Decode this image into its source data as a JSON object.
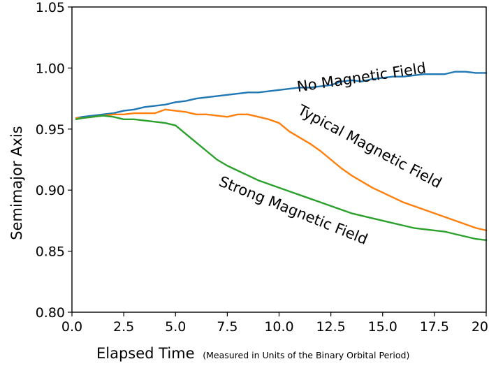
{
  "chart_data": {
    "type": "line",
    "title": "",
    "xlabel": "Elapsed Time",
    "xlabel_note": "(Measured in Units of the Binary Orbital Period)",
    "ylabel": "Semimajor Axis",
    "xlim": [
      0,
      20
    ],
    "ylim": [
      0.8,
      1.05
    ],
    "xticks": [
      0.0,
      2.5,
      5.0,
      7.5,
      10.0,
      12.5,
      15.0,
      17.5,
      20.0
    ],
    "xtick_labels": [
      "0.0",
      "2.5",
      "5.0",
      "7.5",
      "10.0",
      "12.5",
      "15.0",
      "17.5",
      "20"
    ],
    "yticks": [
      0.8,
      0.85,
      0.9,
      0.95,
      1.0,
      1.05
    ],
    "ytick_labels": [
      "0.80",
      "0.85",
      "0.90",
      "0.95",
      "1.00",
      "1.05"
    ],
    "grid": false,
    "series": [
      {
        "name": "No Magnetic Field",
        "color": "#1f77b4",
        "x": [
          0.2,
          0.5,
          1.0,
          1.5,
          2.0,
          2.5,
          3.0,
          3.5,
          4.0,
          4.5,
          5.0,
          5.5,
          6.0,
          6.5,
          7.0,
          7.5,
          8.0,
          8.5,
          9.0,
          9.5,
          10.0,
          10.5,
          11.0,
          11.5,
          12.0,
          12.5,
          13.0,
          13.5,
          14.0,
          14.5,
          15.0,
          15.5,
          16.0,
          16.5,
          17.0,
          17.5,
          18.0,
          18.5,
          19.0,
          19.5,
          20.0
        ],
        "y": [
          0.959,
          0.96,
          0.961,
          0.962,
          0.963,
          0.965,
          0.966,
          0.968,
          0.969,
          0.97,
          0.972,
          0.973,
          0.975,
          0.976,
          0.977,
          0.978,
          0.979,
          0.98,
          0.98,
          0.981,
          0.982,
          0.983,
          0.984,
          0.984,
          0.985,
          0.986,
          0.989,
          0.99,
          0.989,
          0.991,
          0.992,
          0.993,
          0.993,
          0.994,
          0.995,
          0.995,
          0.995,
          0.997,
          0.997,
          0.996,
          0.996
        ]
      },
      {
        "name": "Typical Magnetic Field",
        "color": "#ff7f0e",
        "x": [
          0.2,
          0.5,
          1.0,
          1.5,
          2.0,
          2.5,
          3.0,
          3.5,
          4.0,
          4.5,
          5.0,
          5.5,
          6.0,
          6.5,
          7.0,
          7.5,
          8.0,
          8.5,
          9.0,
          9.5,
          10.0,
          10.5,
          11.0,
          11.5,
          12.0,
          12.5,
          13.0,
          13.5,
          14.0,
          14.5,
          15.0,
          15.5,
          16.0,
          16.5,
          17.0,
          17.5,
          18.0,
          18.5,
          19.0,
          19.5,
          20.0
        ],
        "y": [
          0.959,
          0.959,
          0.96,
          0.961,
          0.962,
          0.962,
          0.963,
          0.963,
          0.963,
          0.966,
          0.965,
          0.964,
          0.962,
          0.962,
          0.961,
          0.96,
          0.962,
          0.962,
          0.96,
          0.958,
          0.955,
          0.948,
          0.943,
          0.938,
          0.932,
          0.925,
          0.918,
          0.912,
          0.907,
          0.902,
          0.898,
          0.894,
          0.89,
          0.887,
          0.884,
          0.881,
          0.878,
          0.875,
          0.872,
          0.869,
          0.867
        ]
      },
      {
        "name": "Strong Magnetic Field",
        "color": "#2ca02c",
        "x": [
          0.2,
          0.5,
          1.0,
          1.5,
          2.0,
          2.5,
          3.0,
          3.5,
          4.0,
          4.5,
          5.0,
          5.5,
          6.0,
          6.5,
          7.0,
          7.5,
          8.0,
          8.5,
          9.0,
          9.5,
          10.0,
          10.5,
          11.0,
          11.5,
          12.0,
          12.5,
          13.0,
          13.5,
          14.0,
          14.5,
          15.0,
          15.5,
          16.0,
          16.5,
          17.0,
          17.5,
          18.0,
          18.5,
          19.0,
          19.5,
          20.0
        ],
        "y": [
          0.958,
          0.959,
          0.96,
          0.961,
          0.96,
          0.958,
          0.958,
          0.957,
          0.956,
          0.955,
          0.953,
          0.946,
          0.939,
          0.932,
          0.925,
          0.92,
          0.916,
          0.912,
          0.908,
          0.905,
          0.902,
          0.899,
          0.896,
          0.893,
          0.89,
          0.887,
          0.884,
          0.881,
          0.879,
          0.877,
          0.875,
          0.873,
          0.871,
          0.869,
          0.868,
          0.867,
          0.866,
          0.864,
          0.862,
          0.86,
          0.859
        ]
      }
    ],
    "annotations": [
      {
        "text": "No Magnetic Field",
        "x": 10.9,
        "y": 0.9805,
        "rotation": -8.5
      },
      {
        "text": "Typical Magnetic Field",
        "x": 10.85,
        "y": 0.963,
        "rotation": 28
      },
      {
        "text": "Strong Magnetic Field",
        "x": 7.05,
        "y": 0.904,
        "rotation": 22
      }
    ]
  }
}
